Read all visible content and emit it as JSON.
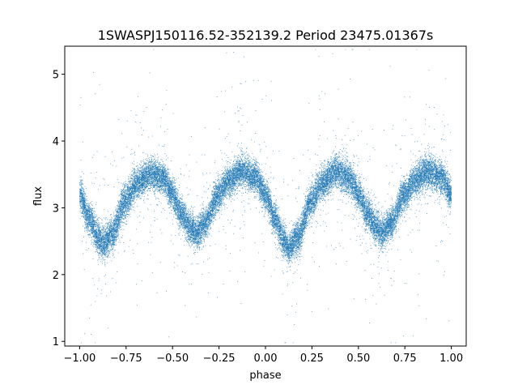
{
  "chart_data": {
    "type": "scatter",
    "title": "1SWASPJ150116.52-352139.2 Period 23475.01367s",
    "xlabel": "phase",
    "ylabel": "flux",
    "xlim": [
      -1.08,
      1.08
    ],
    "ylim": [
      0.93,
      5.42
    ],
    "x_ticks": [
      -1.0,
      -0.75,
      -0.5,
      -0.25,
      0.0,
      0.25,
      0.5,
      0.75,
      1.0
    ],
    "x_tick_labels": [
      "−1.00",
      "−0.75",
      "−0.50",
      "−0.25",
      "0.00",
      "0.25",
      "0.50",
      "0.75",
      "1.00"
    ],
    "y_ticks": [
      1,
      2,
      3,
      4,
      5
    ],
    "y_tick_labels": [
      "1",
      "2",
      "3",
      "4",
      "5"
    ],
    "grid": false,
    "marker_color": "#1f77b4",
    "series": [
      {
        "light_curve_profile": {
          "phase": [
            -1.0,
            -0.95,
            -0.9,
            -0.87,
            -0.83,
            -0.75,
            -0.7,
            -0.62,
            -0.55,
            -0.5,
            -0.45,
            -0.4,
            -0.37,
            -0.33,
            -0.25,
            -0.2,
            -0.13,
            -0.05,
            0.0,
            0.05,
            0.1,
            0.13,
            0.17,
            0.25,
            0.3,
            0.38,
            0.45,
            0.5,
            0.55,
            0.6,
            0.63,
            0.67,
            0.75,
            0.8,
            0.87,
            0.95,
            1.0
          ],
          "flux": [
            3.2,
            2.85,
            2.55,
            2.45,
            2.6,
            3.1,
            3.35,
            3.5,
            3.45,
            3.2,
            2.9,
            2.7,
            2.62,
            2.75,
            3.2,
            3.4,
            3.55,
            3.45,
            3.2,
            2.85,
            2.5,
            2.4,
            2.55,
            3.1,
            3.35,
            3.55,
            3.45,
            3.2,
            2.9,
            2.7,
            2.62,
            2.75,
            3.2,
            3.4,
            3.55,
            3.45,
            3.2
          ]
        },
        "scatter_sigma": 0.12,
        "point_count": 26000
      }
    ]
  }
}
